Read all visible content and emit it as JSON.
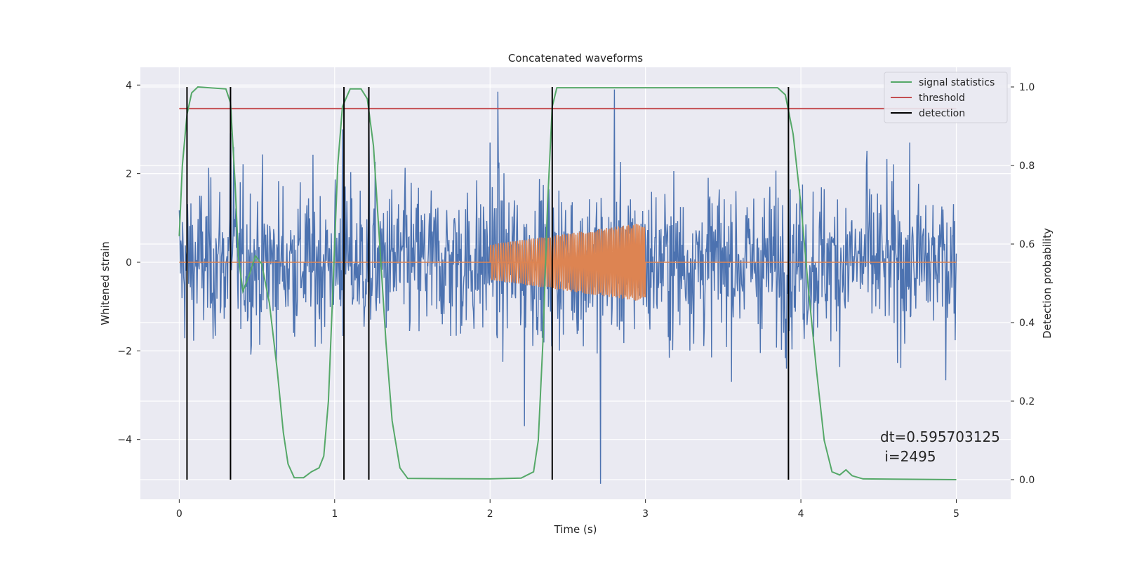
{
  "chart_data": {
    "type": "line",
    "title": "Concatenated waveforms",
    "xlabel": "Time (s)",
    "ylabel_left": "Whitened strain",
    "ylabel_right": "Detection probability",
    "xlim": [
      -0.25,
      5.35
    ],
    "ylim_left": [
      -5.35,
      4.4
    ],
    "ylim_right": [
      -0.05,
      1.05
    ],
    "xticks": [
      "0",
      "1",
      "2",
      "3",
      "4",
      "5"
    ],
    "yticks_left": [
      "−4",
      "−2",
      "0",
      "2",
      "4"
    ],
    "yticks_right": [
      "0.0",
      "0.2",
      "0.4",
      "0.6",
      "0.8",
      "1.0"
    ],
    "grid": true,
    "legend_position": "top-right",
    "colors": {
      "strain": "#4c72b0",
      "template": "#dd8452",
      "signal_statistics": "#55a868",
      "threshold": "#c44e52",
      "detection": "#000000",
      "background": "#eaeaf2"
    },
    "series": [
      {
        "name": "",
        "axis": "left",
        "kind": "noise",
        "x_range": [
          0,
          5
        ],
        "typical_amplitude": 1.1,
        "peaks": [
          [
            0.33,
            2.9
          ],
          [
            0.35,
            2.6
          ],
          [
            1.05,
            3.0
          ],
          [
            1.22,
            3.1
          ],
          [
            2.0,
            2.7
          ],
          [
            2.05,
            3.85
          ],
          [
            2.8,
            3.9
          ],
          [
            2.71,
            -5.0
          ],
          [
            2.22,
            -3.7
          ],
          [
            3.92,
            2.3
          ],
          [
            4.42,
            2.2
          ]
        ]
      },
      {
        "name": "",
        "axis": "left",
        "kind": "chirp",
        "x_range": [
          2.0,
          3.0
        ],
        "amplitude_start": 0.4,
        "amplitude_end": 0.9,
        "baseline": 0
      },
      {
        "name": "signal statistics",
        "axis": "right",
        "points": [
          [
            0.0,
            0.62
          ],
          [
            0.02,
            0.8
          ],
          [
            0.05,
            0.93
          ],
          [
            0.08,
            0.985
          ],
          [
            0.12,
            1.0
          ],
          [
            0.3,
            0.995
          ],
          [
            0.33,
            0.96
          ],
          [
            0.36,
            0.75
          ],
          [
            0.38,
            0.57
          ],
          [
            0.41,
            0.48
          ],
          [
            0.45,
            0.52
          ],
          [
            0.49,
            0.57
          ],
          [
            0.53,
            0.55
          ],
          [
            0.58,
            0.45
          ],
          [
            0.63,
            0.28
          ],
          [
            0.67,
            0.12
          ],
          [
            0.7,
            0.04
          ],
          [
            0.74,
            0.005
          ],
          [
            0.8,
            0.005
          ],
          [
            0.85,
            0.02
          ],
          [
            0.9,
            0.03
          ],
          [
            0.93,
            0.06
          ],
          [
            0.96,
            0.2
          ],
          [
            0.99,
            0.5
          ],
          [
            1.02,
            0.8
          ],
          [
            1.05,
            0.95
          ],
          [
            1.1,
            0.995
          ],
          [
            1.17,
            0.995
          ],
          [
            1.21,
            0.97
          ],
          [
            1.25,
            0.85
          ],
          [
            1.29,
            0.6
          ],
          [
            1.33,
            0.35
          ],
          [
            1.37,
            0.15
          ],
          [
            1.42,
            0.03
          ],
          [
            1.47,
            0.003
          ],
          [
            2.0,
            0.002
          ],
          [
            2.2,
            0.004
          ],
          [
            2.28,
            0.02
          ],
          [
            2.31,
            0.1
          ],
          [
            2.34,
            0.35
          ],
          [
            2.37,
            0.7
          ],
          [
            2.4,
            0.95
          ],
          [
            2.43,
            0.998
          ],
          [
            3.85,
            0.998
          ],
          [
            3.9,
            0.98
          ],
          [
            3.95,
            0.88
          ],
          [
            4.0,
            0.7
          ],
          [
            4.05,
            0.48
          ],
          [
            4.1,
            0.28
          ],
          [
            4.15,
            0.1
          ],
          [
            4.2,
            0.02
          ],
          [
            4.25,
            0.012
          ],
          [
            4.29,
            0.025
          ],
          [
            4.33,
            0.01
          ],
          [
            4.4,
            0.002
          ],
          [
            5.0,
            0.0
          ]
        ]
      },
      {
        "name": "threshold",
        "axis": "right",
        "points": [
          [
            0.0,
            0.945
          ],
          [
            5.0,
            0.945
          ]
        ]
      },
      {
        "name": "detection",
        "axis": "right",
        "vlines": [
          0.05,
          0.33,
          1.06,
          1.22,
          2.4,
          3.92
        ],
        "ymin": 0.0,
        "ymax": 1.0
      }
    ],
    "annotation": {
      "line1": "dt=0.595703125",
      "line2": " i=2495"
    }
  }
}
